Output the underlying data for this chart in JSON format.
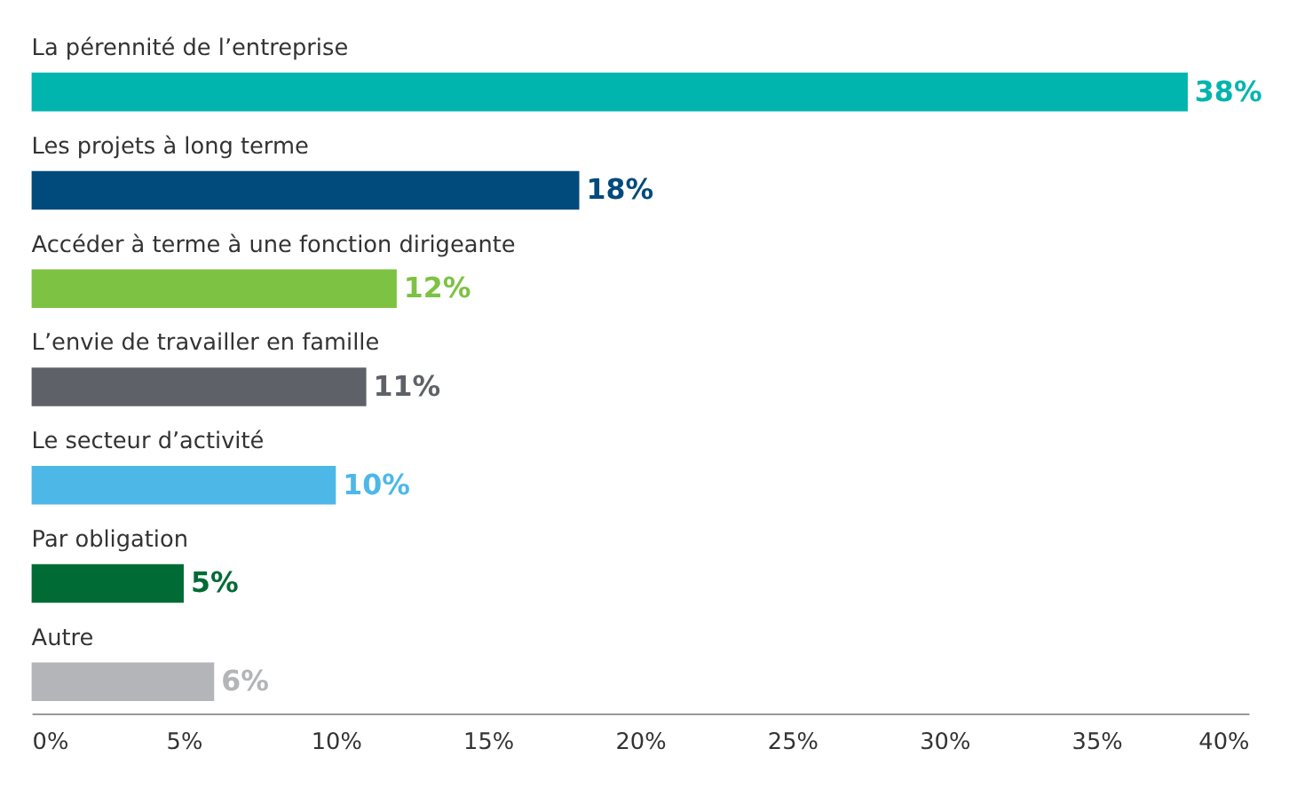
{
  "chart_data": {
    "type": "bar",
    "orientation": "horizontal",
    "categories": [
      "La pérennité de l’entreprise",
      "Les projets à long terme",
      "Accéder à terme à une fonction dirigeante",
      "L’envie de travailler en famille",
      "Le secteur d’activité",
      "Par obligation",
      "Autre"
    ],
    "values": [
      38,
      18,
      12,
      11,
      10,
      5,
      6
    ],
    "value_labels": [
      "38%",
      "18%",
      "12%",
      "11%",
      "10%",
      "5%",
      "6%"
    ],
    "colors": [
      "#00b5ad",
      "#004a7c",
      "#7dc242",
      "#5f6168",
      "#4db8e8",
      "#006b35",
      "#b3b5b8"
    ],
    "xlim": [
      0,
      40
    ],
    "xticks": [
      {
        "value": 0,
        "label": "0%"
      },
      {
        "value": 5,
        "label": "5%"
      },
      {
        "value": 10,
        "label": "10%"
      },
      {
        "value": 15,
        "label": "15%"
      },
      {
        "value": 20,
        "label": "20%"
      },
      {
        "value": 25,
        "label": "25%"
      },
      {
        "value": 30,
        "label": "30%"
      },
      {
        "value": 35,
        "label": "35%"
      },
      {
        "value": 40,
        "label": "40%"
      }
    ],
    "grid": false
  }
}
